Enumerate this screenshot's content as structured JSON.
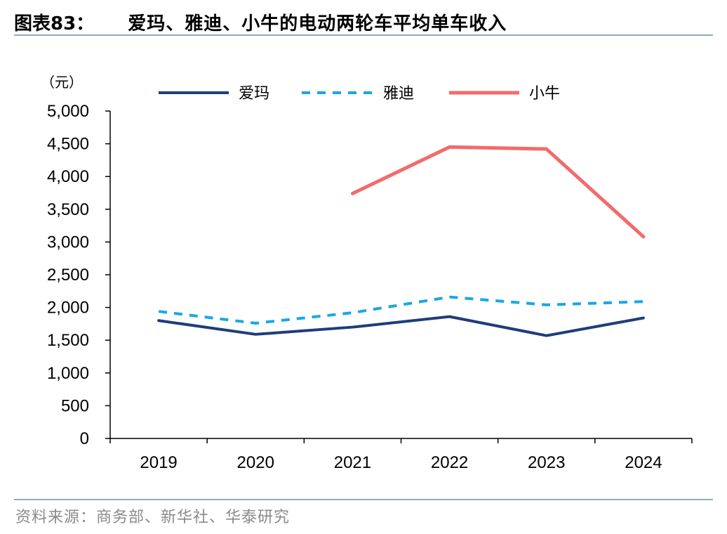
{
  "header": {
    "figure_label": "图表83：",
    "title": "爱玛、雅迪、小牛的电动两轮车平均单车收入"
  },
  "source": "资料来源：商务部、新华社、华泰研究",
  "chart_data": {
    "type": "line",
    "title": "爱玛、雅迪、小牛的电动两轮车平均单车收入",
    "ylabel": "（元）",
    "xlabel": "",
    "ylim": [
      0,
      5000
    ],
    "yticks": [
      0,
      500,
      1000,
      1500,
      2000,
      2500,
      3000,
      3500,
      4000,
      4500,
      5000
    ],
    "ytick_labels": [
      "0",
      "500",
      "1,000",
      "1,500",
      "2,000",
      "2,500",
      "3,000",
      "3,500",
      "4,000",
      "4,500",
      "5,000"
    ],
    "categories": [
      "2019",
      "2020",
      "2021",
      "2022",
      "2023",
      "2024"
    ],
    "legend_position": "top",
    "grid": false,
    "series": [
      {
        "name": "爱玛",
        "color": "#1f3d7a",
        "style": "solid",
        "values": [
          1800,
          1590,
          1700,
          1860,
          1570,
          1840
        ]
      },
      {
        "name": "雅迪",
        "color": "#19a7e6",
        "style": "dashed",
        "values": [
          1940,
          1760,
          1920,
          2160,
          2040,
          2090
        ]
      },
      {
        "name": "小牛",
        "color": "#f26b6b",
        "style": "solid",
        "values": [
          null,
          null,
          3740,
          4450,
          4420,
          3080
        ]
      }
    ]
  }
}
